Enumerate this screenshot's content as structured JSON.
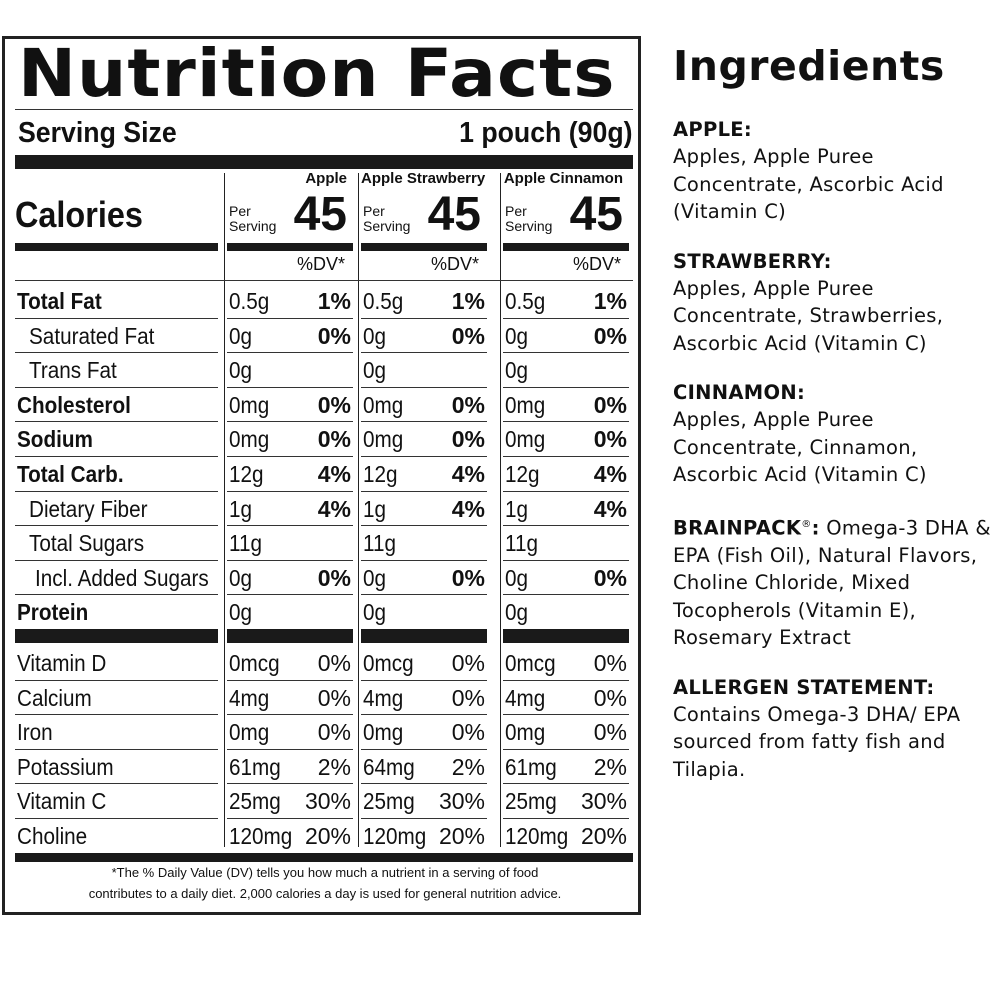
{
  "nutrition": {
    "title": "Nutrition Facts",
    "serving_label": "Serving Size",
    "serving_value": "1 pouch (90g)",
    "calories_label": "Calories",
    "per_serving": [
      "Per",
      "Serving"
    ],
    "dv_header": "%DV*",
    "flavors": [
      {
        "name": "Apple",
        "calories": "45"
      },
      {
        "name": "Apple Strawberry",
        "calories": "45"
      },
      {
        "name": "Apple Cinnamon",
        "calories": "45"
      }
    ],
    "rows": [
      {
        "label": "Total Fat",
        "bold": true,
        "indent": 0,
        "values": [
          [
            "0.5g",
            "1%"
          ],
          [
            "0.5g",
            "1%"
          ],
          [
            "0.5g",
            "1%"
          ]
        ]
      },
      {
        "label": "Saturated Fat",
        "bold": false,
        "indent": 1,
        "values": [
          [
            "0g",
            "0%"
          ],
          [
            "0g",
            "0%"
          ],
          [
            "0g",
            "0%"
          ]
        ]
      },
      {
        "label": "Trans Fat",
        "bold": false,
        "indent": 1,
        "values": [
          [
            "0g",
            ""
          ],
          [
            "0g",
            ""
          ],
          [
            "0g",
            ""
          ]
        ]
      },
      {
        "label": "Cholesterol",
        "bold": true,
        "indent": 0,
        "values": [
          [
            "0mg",
            "0%"
          ],
          [
            "0mg",
            "0%"
          ],
          [
            "0mg",
            "0%"
          ]
        ]
      },
      {
        "label": "Sodium",
        "bold": true,
        "indent": 0,
        "values": [
          [
            "0mg",
            "0%"
          ],
          [
            "0mg",
            "0%"
          ],
          [
            "0mg",
            "0%"
          ]
        ]
      },
      {
        "label": "Total Carb.",
        "bold": true,
        "indent": 0,
        "values": [
          [
            "12g",
            "4%"
          ],
          [
            "12g",
            "4%"
          ],
          [
            "12g",
            "4%"
          ]
        ]
      },
      {
        "label": "Dietary Fiber",
        "bold": false,
        "indent": 1,
        "values": [
          [
            "1g",
            "4%"
          ],
          [
            "1g",
            "4%"
          ],
          [
            "1g",
            "4%"
          ]
        ]
      },
      {
        "label": "Total Sugars",
        "bold": false,
        "indent": 1,
        "values": [
          [
            "11g",
            ""
          ],
          [
            "11g",
            ""
          ],
          [
            "11g",
            ""
          ]
        ]
      },
      {
        "label": "Incl. Added Sugars",
        "bold": false,
        "indent": 2,
        "values": [
          [
            "0g",
            "0%"
          ],
          [
            "0g",
            "0%"
          ],
          [
            "0g",
            "0%"
          ]
        ]
      },
      {
        "label": "Protein",
        "bold": true,
        "indent": 0,
        "values": [
          [
            "0g",
            ""
          ],
          [
            "0g",
            ""
          ],
          [
            "0g",
            ""
          ]
        ]
      }
    ],
    "vitamins": [
      {
        "label": "Vitamin D",
        "values": [
          [
            "0mcg",
            "0%"
          ],
          [
            "0mcg",
            "0%"
          ],
          [
            "0mcg",
            "0%"
          ]
        ]
      },
      {
        "label": "Calcium",
        "values": [
          [
            "4mg",
            "0%"
          ],
          [
            "4mg",
            "0%"
          ],
          [
            "4mg",
            "0%"
          ]
        ]
      },
      {
        "label": "Iron",
        "values": [
          [
            "0mg",
            "0%"
          ],
          [
            "0mg",
            "0%"
          ],
          [
            "0mg",
            "0%"
          ]
        ]
      },
      {
        "label": "Potassium",
        "values": [
          [
            "61mg",
            "2%"
          ],
          [
            "64mg",
            "2%"
          ],
          [
            "61mg",
            "2%"
          ]
        ]
      },
      {
        "label": "Vitamin C",
        "values": [
          [
            "25mg",
            "30%"
          ],
          [
            "25mg",
            "30%"
          ],
          [
            "25mg",
            "30%"
          ]
        ]
      },
      {
        "label": "Choline",
        "values": [
          [
            "120mg",
            "20%"
          ],
          [
            "120mg",
            "20%"
          ],
          [
            "120mg",
            "20%"
          ]
        ]
      }
    ],
    "footnote_line1": "*The % Daily Value (DV) tells you how much a nutrient in a serving of food",
    "footnote_line2": "contributes to a daily diet. 2,000 calories a day is used for general nutrition advice."
  },
  "ingredients": {
    "title": "Ingredients",
    "apple_head": "APPLE:",
    "apple_body": "Apples, Apple Puree Concentrate, Ascorbic Acid (Vitamin C)",
    "strawberry_head": "STRAWBERRY:",
    "strawberry_body": "Apples, Apple Puree Concentrate, Strawberries, Ascorbic Acid (Vitamin C)",
    "cinnamon_head": "CINNAMON:",
    "cinnamon_body": "Apples, Apple Puree Concentrate, Cinnamon, Ascorbic Acid (Vitamin C)",
    "brainpack_head": "BRAINPACK",
    "brainpack_mark": "®",
    "brainpack_sep": ":",
    "brainpack_body": "Omega-3 DHA & EPA (Fish Oil), Natural Flavors, Choline Chloride, Mixed Tocopherols (Vitamin E), Rosemary Extract",
    "allergen_head": "ALLERGEN STATEMENT:",
    "allergen_body": "Contains Omega-3 DHA/ EPA sourced from fatty fish and Tilapia."
  }
}
